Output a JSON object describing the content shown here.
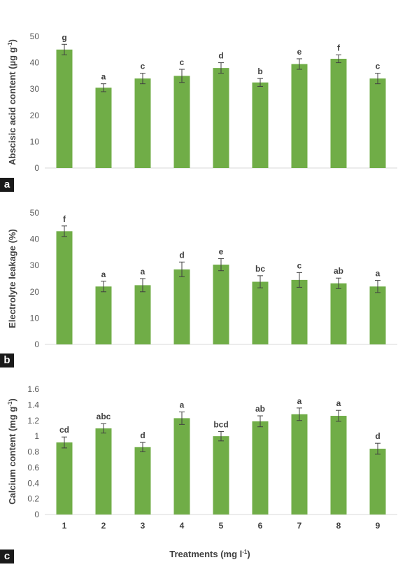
{
  "panel_labels": [
    "a",
    "b",
    "c"
  ],
  "xlabel": "Treatments (mg l",
  "xlabel_sup": "-1",
  "xlabel_close": ")",
  "colors": {
    "bar": "#70ad47",
    "axis": "#d9d9d9",
    "tick_text": "#595959",
    "error_bar": "#404040",
    "label_text": "#404040"
  },
  "chart_data": [
    {
      "type": "bar",
      "categories": [
        "1",
        "2",
        "3",
        "4",
        "5",
        "6",
        "7",
        "8",
        "9"
      ],
      "values": [
        45,
        30.5,
        34,
        35,
        38,
        32.5,
        39.5,
        41.5,
        34
      ],
      "errors": [
        2,
        1.5,
        2,
        2.5,
        2,
        1.5,
        2,
        1.5,
        2
      ],
      "letters": [
        "g",
        "a",
        "c",
        "c",
        "d",
        "b",
        "e",
        "f",
        "c"
      ],
      "ylabel": "Abscisic acid content (µg g",
      "ylabel_sup": "-1",
      "ylabel_close": ")",
      "ylim": [
        0,
        50
      ],
      "yticks": [
        "0",
        "10",
        "20",
        "30",
        "40",
        "50"
      ],
      "ytick_values": [
        0,
        10,
        20,
        30,
        40,
        50
      ],
      "grid": false,
      "legend": "none"
    },
    {
      "type": "bar",
      "categories": [
        "1",
        "2",
        "3",
        "4",
        "5",
        "6",
        "7",
        "8",
        "9"
      ],
      "values": [
        43,
        22,
        22.5,
        28.5,
        30.3,
        23.8,
        24.5,
        23.2,
        22
      ],
      "errors": [
        2,
        2,
        2.5,
        2.8,
        2.3,
        2.3,
        2.8,
        2,
        2.3
      ],
      "letters": [
        "f",
        "a",
        "a",
        "d",
        "e",
        "bc",
        "c",
        "ab",
        "a"
      ],
      "ylabel": "Electrolyte leakage (%)",
      "ylim": [
        0,
        50
      ],
      "yticks": [
        "0",
        "10",
        "20",
        "30",
        "40",
        "50"
      ],
      "ytick_values": [
        0,
        10,
        20,
        30,
        40,
        50
      ],
      "grid": false,
      "legend": "none"
    },
    {
      "type": "bar",
      "categories": [
        "1",
        "2",
        "3",
        "4",
        "5",
        "6",
        "7",
        "8",
        "9"
      ],
      "values": [
        0.92,
        1.1,
        0.86,
        1.23,
        1.0,
        1.19,
        1.28,
        1.26,
        0.84
      ],
      "errors": [
        0.07,
        0.06,
        0.06,
        0.08,
        0.06,
        0.07,
        0.08,
        0.07,
        0.07
      ],
      "letters": [
        "cd",
        "abc",
        "d",
        "a",
        "bcd",
        "ab",
        "a",
        "a",
        "d"
      ],
      "ylabel": "Calcium content (mg g",
      "ylabel_sup": "-1",
      "ylabel_close": ")",
      "ylim": [
        0,
        1.6
      ],
      "yticks": [
        "0",
        "0.2",
        "0.4",
        "0.6",
        "0.8",
        "1",
        "1.2",
        "1.4",
        "1.6"
      ],
      "ytick_values": [
        0,
        0.2,
        0.4,
        0.6,
        0.8,
        1,
        1.2,
        1.4,
        1.6
      ],
      "grid": false,
      "legend": "none"
    }
  ]
}
